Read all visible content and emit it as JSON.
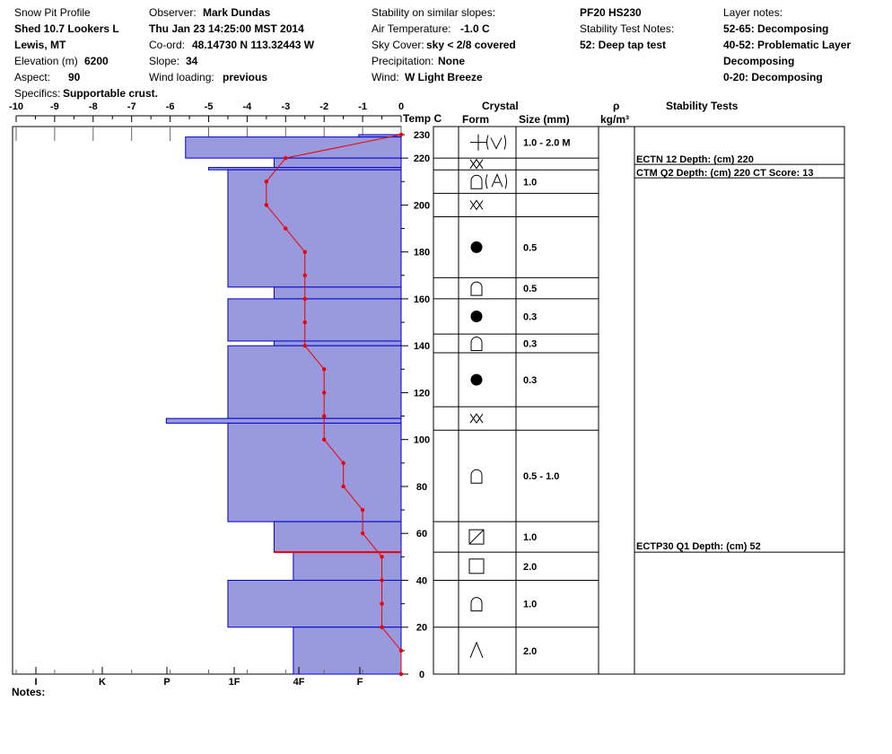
{
  "header": {
    "title": "Snow Pit Profile",
    "location": "Shed 10.7 Lookers L",
    "region": "Lewis, MT",
    "elevation_label": "Elevation (m)",
    "elevation": "6200",
    "aspect_label": "Aspect:",
    "aspect": "90",
    "specifics_label": "Specifics:",
    "specifics": "Supportable crust.",
    "observer_label": "Observer:",
    "observer": "Mark Dundas",
    "datetime": "Thu Jan 23 14:25:00 MST 2014",
    "coord_label": "Co-ord:",
    "coord": "48.14730 N 113.32443 W",
    "slope_label": "Slope:",
    "slope": "34",
    "wind_loading_label": "Wind loading:",
    "wind_loading": "previous",
    "stability_label": "Stability on similar slopes:",
    "air_temp_label": "Air Temperature:",
    "air_temp": "-1.0 C",
    "sky_label": "Sky Cover:",
    "sky": "sky < 2/8 covered",
    "precip_label": "Precipitation:",
    "precip": "None",
    "wind_label": "Wind:",
    "wind": "W Light Breeze",
    "pf": "PF20 HS230",
    "stn_label": "Stability Test Notes:",
    "stn1": "52: Deep tap test",
    "layer_notes_label": "Layer notes:",
    "ln1": "52-65: Decomposing",
    "ln2": "40-52: Problematic Layer",
    "ln3": "Decomposing",
    "ln4": "0-20: Decomposing"
  },
  "columns": {
    "temp": "Temp C",
    "crystal": "Crystal",
    "form": "Form",
    "size": "Size (mm)",
    "rho": "ρ",
    "density_unit": "kg/m³",
    "stability_tests": "Stability Tests"
  },
  "notes_label": "Notes:",
  "chart_data": {
    "type": "snow_profile",
    "temp_axis": {
      "ticks": [
        "-10",
        "-9",
        "-8",
        "-7",
        "-6",
        "-5",
        "-4",
        "-3",
        "-2",
        "-1",
        "0"
      ],
      "range": [
        -10,
        0
      ]
    },
    "hardness_axis": {
      "ticks": [
        "I",
        "K",
        "P",
        "1F",
        "4F",
        "F"
      ]
    },
    "height_axis": {
      "ticks": [
        "0",
        "20",
        "40",
        "60",
        "80",
        "100",
        "120",
        "140",
        "160",
        "180",
        "200",
        "220",
        "230"
      ],
      "range": [
        0,
        230
      ]
    },
    "hardness_layers": [
      {
        "bottom": 229,
        "top": 230,
        "x_temp": -1.1
      },
      {
        "bottom": 220,
        "top": 229,
        "x_temp": -5.6
      },
      {
        "bottom": 216,
        "top": 220,
        "x_temp": -3.3
      },
      {
        "bottom": 215,
        "top": 216,
        "x_temp": -5.0
      },
      {
        "bottom": 165,
        "top": 215,
        "x_temp": -4.5
      },
      {
        "bottom": 160,
        "top": 165,
        "x_temp": -3.3
      },
      {
        "bottom": 142,
        "top": 160,
        "x_temp": -4.5
      },
      {
        "bottom": 140,
        "top": 142,
        "x_temp": -3.3
      },
      {
        "bottom": 109,
        "top": 140,
        "x_temp": -4.5
      },
      {
        "bottom": 107,
        "top": 109,
        "x_temp": -6.1
      },
      {
        "bottom": 65,
        "top": 107,
        "x_temp": -4.5
      },
      {
        "bottom": 52,
        "top": 65,
        "x_temp": -3.3
      },
      {
        "bottom": 40,
        "top": 52,
        "x_temp": -2.8
      },
      {
        "bottom": 20,
        "top": 40,
        "x_temp": -4.5
      },
      {
        "bottom": 0,
        "top": 20,
        "x_temp": -2.8
      }
    ],
    "temperature_profile": [
      {
        "h": 230,
        "t": 0.0
      },
      {
        "h": 220,
        "t": -3.0
      },
      {
        "h": 210,
        "t": -3.5
      },
      {
        "h": 200,
        "t": -3.5
      },
      {
        "h": 190,
        "t": -3.0
      },
      {
        "h": 180,
        "t": -2.5
      },
      {
        "h": 170,
        "t": -2.5
      },
      {
        "h": 160,
        "t": -2.5
      },
      {
        "h": 150,
        "t": -2.5
      },
      {
        "h": 140,
        "t": -2.5
      },
      {
        "h": 130,
        "t": -2.0
      },
      {
        "h": 120,
        "t": -2.0
      },
      {
        "h": 110,
        "t": -2.0
      },
      {
        "h": 100,
        "t": -2.0
      },
      {
        "h": 90,
        "t": -1.5
      },
      {
        "h": 80,
        "t": -1.5
      },
      {
        "h": 70,
        "t": -1.0
      },
      {
        "h": 60,
        "t": -1.0
      },
      {
        "h": 50,
        "t": -0.5
      },
      {
        "h": 40,
        "t": -0.5
      },
      {
        "h": 30,
        "t": -0.5
      },
      {
        "h": 20,
        "t": -0.5
      },
      {
        "h": 10,
        "t": 0.0
      },
      {
        "h": 0,
        "t": 0.0
      }
    ],
    "problem_layer": {
      "height": 52,
      "from_temp": -3.3,
      "to_temp": 0
    },
    "crystal_rows": [
      {
        "bottom": 220,
        "top": 230,
        "form": "PP(DF)",
        "size": "1.0 - 2.0 M"
      },
      {
        "bottom": 215,
        "top": 220,
        "form": "SH",
        "size": ""
      },
      {
        "bottom": 205,
        "top": 215,
        "form": "FC(DH)",
        "size": "1.0"
      },
      {
        "bottom": 195,
        "top": 205,
        "form": "SH",
        "size": ""
      },
      {
        "bottom": 169,
        "top": 195,
        "form": "RG",
        "size": "0.5"
      },
      {
        "bottom": 160,
        "top": 169,
        "form": "FC",
        "size": "0.5"
      },
      {
        "bottom": 145,
        "top": 160,
        "form": "RG",
        "size": "0.3"
      },
      {
        "bottom": 137,
        "top": 145,
        "form": "FC",
        "size": "0.3"
      },
      {
        "bottom": 114,
        "top": 137,
        "form": "RG",
        "size": "0.3"
      },
      {
        "bottom": 104,
        "top": 114,
        "form": "SH",
        "size": ""
      },
      {
        "bottom": 65,
        "top": 104,
        "form": "FC",
        "size": "0.5 - 1.0"
      },
      {
        "bottom": 52,
        "top": 65,
        "form": "FCxr",
        "size": "1.0"
      },
      {
        "bottom": 40,
        "top": 52,
        "form": "FC-sq",
        "size": "2.0"
      },
      {
        "bottom": 20,
        "top": 40,
        "form": "FC",
        "size": "1.0"
      },
      {
        "bottom": 0,
        "top": 20,
        "form": "DH",
        "size": "2.0"
      }
    ],
    "stability_tests": [
      {
        "height": 220,
        "text": "ECTN 12   Depth: (cm) 220"
      },
      {
        "height": 220,
        "text": "CTM Q2 Depth: (cm) 220 CT Score: 13"
      },
      {
        "height": 52,
        "text": "ECTP30 Q1 Depth: (cm) 52"
      }
    ],
    "colors": {
      "layer_fill": "#9999dd",
      "layer_stroke": "#0000cc",
      "temp_line": "#ee0000"
    }
  }
}
